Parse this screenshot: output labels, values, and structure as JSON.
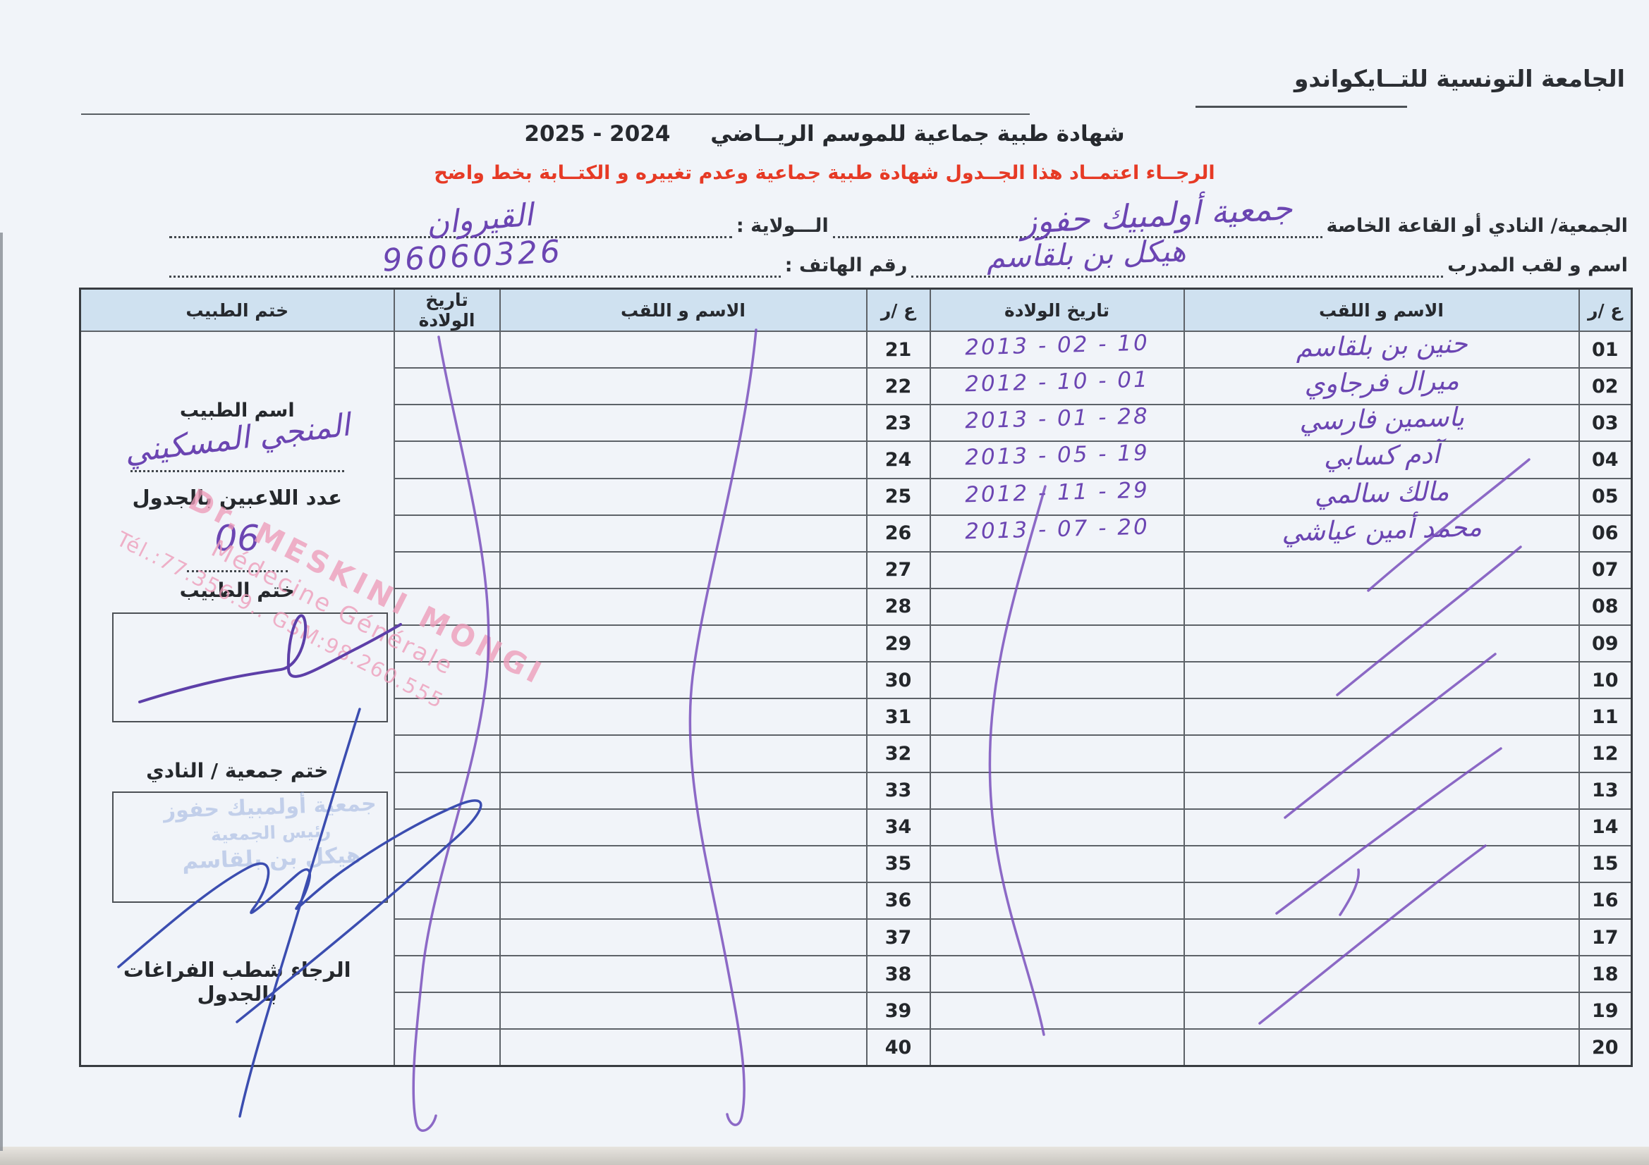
{
  "header": {
    "federation": "الجامعة التونسية للتــايكواندو"
  },
  "title": {
    "text": "شهادة طبية جماعية  للموسم الريــاضي",
    "season": "2024 - 2025"
  },
  "notice": {
    "text": "الرجــاء اعتمــاد هذا الجــدول  شهادة طبية جماعية وعدم تغييره و الكتــابة بخط واضح"
  },
  "fields": {
    "club_label": "الجمعية/ النادي أو القاعة الخاصة",
    "club_value": "جمعية أولمبيك حفوز",
    "state_label": "الـــولاية :",
    "state_value": "القيروان",
    "coach_label": "اسم و لقب المدرب",
    "coach_value": "هيكل بن بلقاسم",
    "phone_label": "رقم الهاتف :",
    "phone_value": "96060326"
  },
  "table": {
    "headers": {
      "num": "ع /ر",
      "name": "الاسم و اللقب",
      "dob": "تاريخ الولادة",
      "stamp": "ختم الطبيب"
    },
    "right_rows": [
      {
        "n": "01",
        "name": "حنين بن بلقاسم",
        "dob": "2013 - 02 - 10"
      },
      {
        "n": "02",
        "name": "ميرال فرجاوي",
        "dob": "2012 - 10 - 01"
      },
      {
        "n": "03",
        "name": "ياسمين فارسي",
        "dob": "2013 - 01 - 28"
      },
      {
        "n": "04",
        "name": "آدم كسابي",
        "dob": "2013 - 05 - 19"
      },
      {
        "n": "05",
        "name": "مالك سالمي",
        "dob": "2012 - 11 - 29"
      },
      {
        "n": "06",
        "name": "محمد أمين عياشي",
        "dob": "2013 - 07 - 20"
      },
      {
        "n": "07",
        "name": "",
        "dob": ""
      },
      {
        "n": "08",
        "name": "",
        "dob": ""
      },
      {
        "n": "09",
        "name": "",
        "dob": ""
      },
      {
        "n": "10",
        "name": "",
        "dob": ""
      },
      {
        "n": "11",
        "name": "",
        "dob": ""
      },
      {
        "n": "12",
        "name": "",
        "dob": ""
      },
      {
        "n": "13",
        "name": "",
        "dob": ""
      },
      {
        "n": "14",
        "name": "",
        "dob": ""
      },
      {
        "n": "15",
        "name": "",
        "dob": ""
      },
      {
        "n": "16",
        "name": "",
        "dob": ""
      },
      {
        "n": "17",
        "name": "",
        "dob": ""
      },
      {
        "n": "18",
        "name": "",
        "dob": ""
      },
      {
        "n": "19",
        "name": "",
        "dob": ""
      },
      {
        "n": "20",
        "name": "",
        "dob": ""
      }
    ],
    "left_nums": [
      "21",
      "22",
      "23",
      "24",
      "25",
      "26",
      "27",
      "28",
      "29",
      "30",
      "31",
      "32",
      "33",
      "34",
      "35",
      "36",
      "37",
      "38",
      "39",
      "40"
    ]
  },
  "stamp_col": {
    "doctor_name_label": "اسم الطبيب",
    "doctor_name_value": "المنجي المسكيني",
    "players_label": "عدد اللاعبين بالجدول",
    "players_value": "06",
    "doctor_stamp_label": "ختم الطبيب",
    "club_stamp_label": "ختم جمعية / النادي",
    "footer_note": "الرجاء شطب  الفراغات بالجدول"
  },
  "pink_stamp": {
    "line1": "Dr. MESKINI MONGI",
    "line2": "Médecine Générale",
    "line3": "Tél.:77.356.9..   GSM:98.260.555"
  },
  "club_stamp_faint": [
    "جمعية أولمبيك حفوز",
    "رئيس الجمعية",
    "هيكل بن بلقاسم"
  ],
  "ink_colors": {
    "purple": "#7a50bd",
    "doctor_signature": "#5d3fa8",
    "blue_signature": "#3b4db0"
  }
}
